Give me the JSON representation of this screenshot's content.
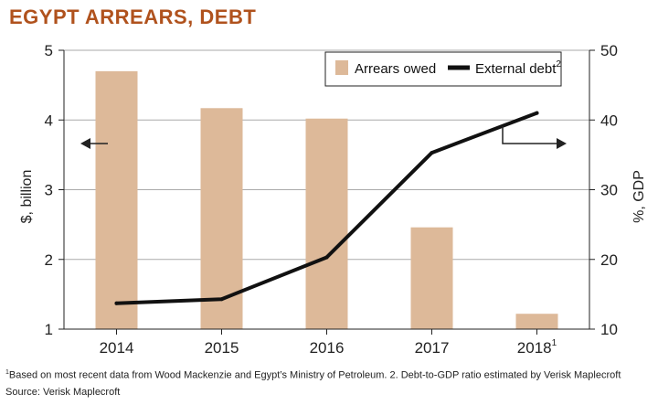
{
  "chart_data": {
    "type": "bar",
    "title": "EGYPT ARREARS, DEBT",
    "categories": [
      "2014",
      "2015",
      "2016",
      "2017",
      "2018"
    ],
    "category_superscripts": [
      "",
      "",
      "",
      "",
      "1"
    ],
    "ylabel": "$, billion",
    "ylim": [
      1,
      5
    ],
    "yticks": [
      1,
      2,
      3,
      4,
      5
    ],
    "y2label": "%, GDP",
    "y2lim": [
      10,
      50
    ],
    "y2ticks": [
      10,
      20,
      30,
      40,
      50
    ],
    "grid": true,
    "legend_position": "top-right",
    "series": [
      {
        "name": "Arrears owed",
        "type": "bar",
        "axis": "left",
        "color": "#ddb999",
        "values": [
          4.7,
          4.17,
          4.02,
          2.46,
          1.22
        ]
      },
      {
        "name": "External debt",
        "name_superscript": "2",
        "type": "line",
        "axis": "right",
        "color": "#111111",
        "values": [
          13.7,
          14.3,
          20.3,
          35.3,
          41.0
        ]
      }
    ],
    "footnote": "Based on most recent data from Wood Mackenzie and Egypt’s Ministry of Petroleum. 2. Debt-to-GDP ratio estimated by Verisk Maplecroft",
    "footnote_marker": "1",
    "source": "Source: Verisk Maplecroft"
  },
  "colors": {
    "title": "#b0521d",
    "grid": "#aaaaaa",
    "bar": "#ddb999",
    "line": "#111111"
  }
}
